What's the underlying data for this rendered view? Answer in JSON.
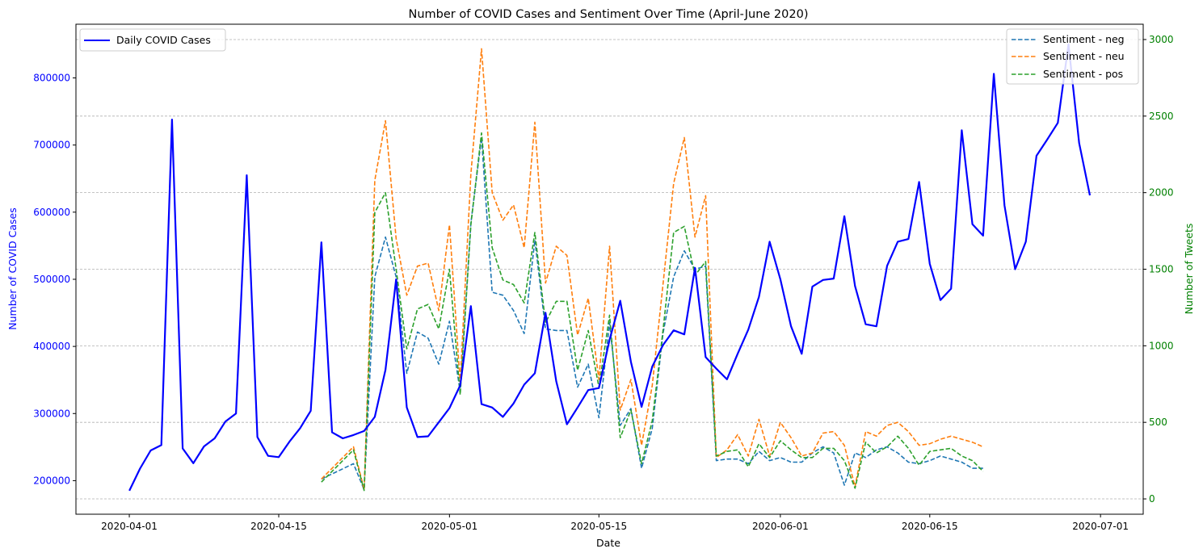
{
  "chart_data": {
    "type": "line",
    "title": "Number of COVID Cases and Sentiment Over Time (April-June 2020)",
    "xlabel": "Date",
    "ylabel_left": "Number of COVID Cases",
    "ylabel_right": "Number of Tweets",
    "x_ticks": [
      "2020-04-01",
      "2020-04-15",
      "2020-05-01",
      "2020-05-15",
      "2020-06-01",
      "2020-06-15",
      "2020-07-01"
    ],
    "y_left_ticks": [
      200000,
      300000,
      400000,
      500000,
      600000,
      700000,
      800000
    ],
    "y_right_ticks": [
      0,
      500,
      1000,
      1500,
      2000,
      2500,
      3000
    ],
    "xlim": [
      "2020-03-27",
      "2020-07-05"
    ],
    "ylim_left": [
      150000,
      880000
    ],
    "ylim_right": [
      -100,
      3100
    ],
    "grid": "horizontal dashed (right axis)",
    "legend_left_position": "upper left",
    "legend_right_position": "upper right",
    "colors": {
      "cases": "#0000ff",
      "neg": "#1f77b4",
      "neu": "#ff7f0e",
      "pos": "#2ca02c",
      "left_axis": "#0000ff",
      "right_axis": "#008000"
    },
    "series_left": [
      {
        "name": "Daily COVID Cases",
        "color": "#0000ff",
        "style": "solid",
        "x": [
          "2020-04-01",
          "2020-04-02",
          "2020-04-03",
          "2020-04-04",
          "2020-04-05",
          "2020-04-06",
          "2020-04-07",
          "2020-04-08",
          "2020-04-09",
          "2020-04-10",
          "2020-04-11",
          "2020-04-12",
          "2020-04-13",
          "2020-04-14",
          "2020-04-15",
          "2020-04-16",
          "2020-04-17",
          "2020-04-18",
          "2020-04-19",
          "2020-04-20",
          "2020-04-21",
          "2020-04-22",
          "2020-04-23",
          "2020-04-24",
          "2020-04-25",
          "2020-04-26",
          "2020-04-27",
          "2020-04-28",
          "2020-04-29",
          "2020-04-30",
          "2020-05-01",
          "2020-05-02",
          "2020-05-03",
          "2020-05-04",
          "2020-05-05",
          "2020-05-06",
          "2020-05-07",
          "2020-05-08",
          "2020-05-09",
          "2020-05-10",
          "2020-05-11",
          "2020-05-12",
          "2020-05-13",
          "2020-05-14",
          "2020-05-15",
          "2020-05-16",
          "2020-05-17",
          "2020-05-18",
          "2020-05-19",
          "2020-05-20",
          "2020-05-21",
          "2020-05-22",
          "2020-05-23",
          "2020-05-24",
          "2020-05-25",
          "2020-05-26",
          "2020-05-27",
          "2020-05-28",
          "2020-05-29",
          "2020-05-30",
          "2020-05-31",
          "2020-06-01",
          "2020-06-02",
          "2020-06-03",
          "2020-06-04",
          "2020-06-05",
          "2020-06-06",
          "2020-06-07",
          "2020-06-08",
          "2020-06-09",
          "2020-06-10",
          "2020-06-11",
          "2020-06-12",
          "2020-06-13",
          "2020-06-14",
          "2020-06-15",
          "2020-06-16",
          "2020-06-17",
          "2020-06-18",
          "2020-06-19",
          "2020-06-20",
          "2020-06-21",
          "2020-06-22",
          "2020-06-23",
          "2020-06-24",
          "2020-06-25",
          "2020-06-26",
          "2020-06-27",
          "2020-06-28",
          "2020-06-29",
          "2020-06-30"
        ],
        "values": [
          185000,
          218000,
          245000,
          253000,
          738000,
          248000,
          226000,
          251000,
          263000,
          288000,
          300000,
          655000,
          265000,
          237000,
          235000,
          258000,
          278000,
          304000,
          555000,
          272000,
          263000,
          268000,
          274000,
          295000,
          365000,
          500000,
          309000,
          265000,
          266000,
          287000,
          308000,
          342000,
          460000,
          314000,
          309000,
          295000,
          315000,
          343000,
          360000,
          450000,
          348000,
          284000,
          309000,
          335000,
          338000,
          410000,
          468000,
          377000,
          310000,
          370000,
          402000,
          424000,
          418000,
          517000,
          384000,
          367000,
          351000,
          389000,
          425000,
          474000,
          556000,
          500000,
          430000,
          389000,
          489000,
          499000,
          501000,
          594000,
          490000,
          433000,
          430000,
          520000,
          556000,
          560000,
          645000,
          523000,
          469000,
          486000,
          722000,
          582000,
          565000,
          806000,
          610000,
          515000,
          556000,
          684000,
          708000,
          733000,
          850000,
          703000,
          625000
        ]
      }
    ],
    "series_right": [
      {
        "name": "Sentiment - neg",
        "color": "#1f77b4",
        "style": "dashed",
        "x": [
          "2020-04-19",
          "2020-04-22",
          "2020-04-23",
          "2020-04-24",
          "2020-04-25",
          "2020-04-26",
          "2020-04-27",
          "2020-04-28",
          "2020-04-29",
          "2020-04-30",
          "2020-05-01",
          "2020-05-02",
          "2020-05-03",
          "2020-05-04",
          "2020-05-05",
          "2020-05-06",
          "2020-05-07",
          "2020-05-08",
          "2020-05-09",
          "2020-05-10",
          "2020-05-11",
          "2020-05-12",
          "2020-05-13",
          "2020-05-14",
          "2020-05-15",
          "2020-05-16",
          "2020-05-17",
          "2020-05-18",
          "2020-05-19",
          "2020-05-20",
          "2020-05-21",
          "2020-05-22",
          "2020-05-23",
          "2020-05-24",
          "2020-05-25",
          "2020-05-26",
          "2020-05-27",
          "2020-05-28",
          "2020-05-29",
          "2020-05-30",
          "2020-05-31",
          "2020-06-01",
          "2020-06-02",
          "2020-06-03",
          "2020-06-04",
          "2020-06-05",
          "2020-06-06",
          "2020-06-07",
          "2020-06-08",
          "2020-06-09",
          "2020-06-10",
          "2020-06-11",
          "2020-06-12",
          "2020-06-13",
          "2020-06-14",
          "2020-06-15",
          "2020-06-16",
          "2020-06-17",
          "2020-06-18",
          "2020-06-19",
          "2020-06-20"
        ],
        "values": [
          130,
          230,
          60,
          1450,
          1710,
          1450,
          820,
          1090,
          1050,
          880,
          1160,
          700,
          1800,
          2360,
          1350,
          1330,
          1230,
          1080,
          1690,
          1110,
          1100,
          1100,
          730,
          880,
          530,
          1150,
          480,
          590,
          200,
          460,
          1080,
          1450,
          1620,
          1500,
          1520,
          250,
          260,
          260,
          230,
          310,
          250,
          270,
          240,
          240,
          300,
          340,
          300,
          90,
          300,
          270,
          320,
          340,
          300,
          240,
          230,
          250,
          280,
          260,
          240,
          200,
          200
        ]
      },
      {
        "name": "Sentiment - neu",
        "color": "#ff7f0e",
        "style": "dashed",
        "x": [
          "2020-04-19",
          "2020-04-22",
          "2020-04-23",
          "2020-04-24",
          "2020-04-25",
          "2020-04-26",
          "2020-04-27",
          "2020-04-28",
          "2020-04-29",
          "2020-04-30",
          "2020-05-01",
          "2020-05-02",
          "2020-05-03",
          "2020-05-04",
          "2020-05-05",
          "2020-05-06",
          "2020-05-07",
          "2020-05-08",
          "2020-05-09",
          "2020-05-10",
          "2020-05-11",
          "2020-05-12",
          "2020-05-13",
          "2020-05-14",
          "2020-05-15",
          "2020-05-16",
          "2020-05-17",
          "2020-05-18",
          "2020-05-19",
          "2020-05-20",
          "2020-05-21",
          "2020-05-22",
          "2020-05-23",
          "2020-05-24",
          "2020-05-25",
          "2020-05-26",
          "2020-05-27",
          "2020-05-28",
          "2020-05-29",
          "2020-05-30",
          "2020-05-31",
          "2020-06-01",
          "2020-06-02",
          "2020-06-03",
          "2020-06-04",
          "2020-06-05",
          "2020-06-06",
          "2020-06-07",
          "2020-06-08",
          "2020-06-09",
          "2020-06-10",
          "2020-06-11",
          "2020-06-12",
          "2020-06-13",
          "2020-06-14",
          "2020-06-15",
          "2020-06-16",
          "2020-06-17",
          "2020-06-18",
          "2020-06-19",
          "2020-06-20"
        ],
        "values": [
          130,
          340,
          60,
          2080,
          2470,
          1700,
          1330,
          1520,
          1540,
          1230,
          1790,
          760,
          2120,
          2940,
          2000,
          1820,
          1920,
          1640,
          2460,
          1410,
          1650,
          1590,
          1070,
          1310,
          780,
          1650,
          580,
          780,
          350,
          740,
          1400,
          2060,
          2360,
          1710,
          1980,
          270,
          320,
          420,
          280,
          520,
          280,
          500,
          400,
          280,
          300,
          430,
          440,
          350,
          80,
          440,
          410,
          480,
          500,
          440,
          350,
          360,
          390,
          410,
          390,
          370,
          340
        ]
      },
      {
        "name": "Sentiment - pos",
        "color": "#2ca02c",
        "style": "dashed",
        "x": [
          "2020-04-19",
          "2020-04-22",
          "2020-04-23",
          "2020-04-24",
          "2020-04-25",
          "2020-04-26",
          "2020-04-27",
          "2020-04-28",
          "2020-04-29",
          "2020-04-30",
          "2020-05-01",
          "2020-05-02",
          "2020-05-03",
          "2020-05-04",
          "2020-05-05",
          "2020-05-06",
          "2020-05-07",
          "2020-05-08",
          "2020-05-09",
          "2020-05-10",
          "2020-05-11",
          "2020-05-12",
          "2020-05-13",
          "2020-05-14",
          "2020-05-15",
          "2020-05-16",
          "2020-05-17",
          "2020-05-18",
          "2020-05-19",
          "2020-05-20",
          "2020-05-21",
          "2020-05-22",
          "2020-05-23",
          "2020-05-24",
          "2020-05-25",
          "2020-05-26",
          "2020-05-27",
          "2020-05-28",
          "2020-05-29",
          "2020-05-30",
          "2020-05-31",
          "2020-06-01",
          "2020-06-02",
          "2020-06-03",
          "2020-06-04",
          "2020-06-05",
          "2020-06-06",
          "2020-06-07",
          "2020-06-08",
          "2020-06-09",
          "2020-06-10",
          "2020-06-11",
          "2020-06-12",
          "2020-06-13",
          "2020-06-14",
          "2020-06-15",
          "2020-06-16",
          "2020-06-17",
          "2020-06-18",
          "2020-06-19",
          "2020-06-20"
        ],
        "values": [
          110,
          320,
          55,
          1870,
          2000,
          1500,
          980,
          1240,
          1270,
          1110,
          1500,
          680,
          1790,
          2390,
          1640,
          1430,
          1400,
          1280,
          1740,
          1150,
          1290,
          1290,
          840,
          1100,
          730,
          1200,
          400,
          580,
          230,
          510,
          1100,
          1740,
          1780,
          1460,
          1550,
          280,
          310,
          320,
          210,
          360,
          270,
          380,
          320,
          270,
          270,
          330,
          330,
          250,
          70,
          370,
          300,
          340,
          410,
          330,
          220,
          310,
          320,
          330,
          280,
          250,
          180
        ]
      }
    ]
  }
}
